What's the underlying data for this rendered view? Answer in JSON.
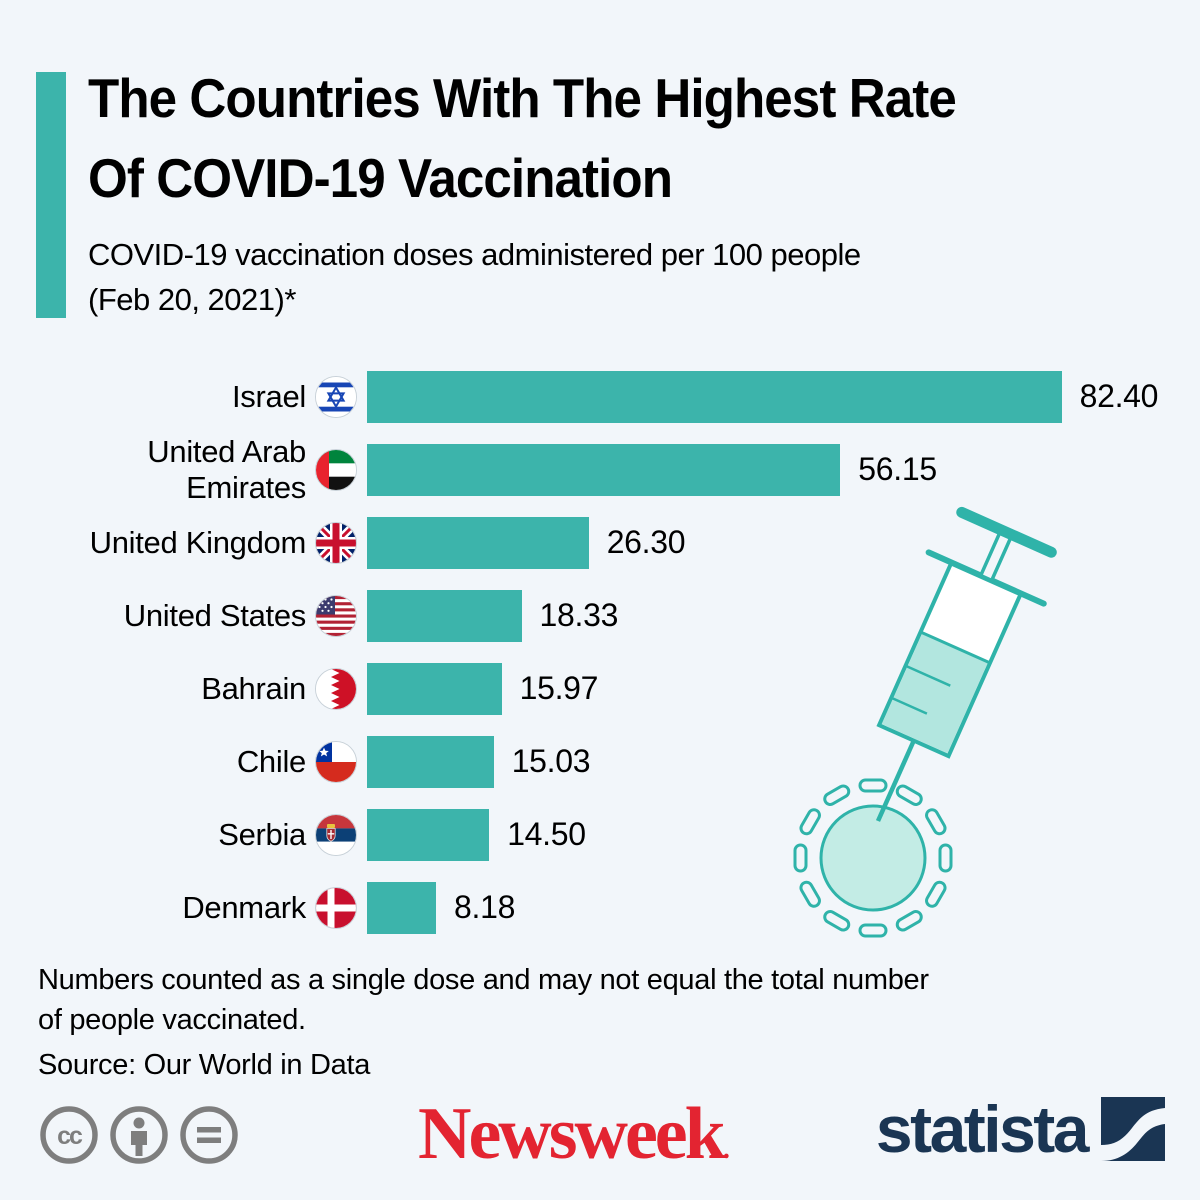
{
  "page": {
    "background_color": "#f2f6fa",
    "accent_color": "#3cb4ab"
  },
  "header": {
    "title_line1": "The Countries With The Highest Rate",
    "title_line2": "Of COVID-19 Vaccination",
    "subtitle_line1": "COVID-19 vaccination doses administered per 100 people",
    "subtitle_line2": "(Feb 20, 2021)*"
  },
  "chart_data": {
    "type": "bar",
    "orientation": "horizontal",
    "title": "The Countries With The Highest Rate Of COVID-19 Vaccination",
    "subtitle": "COVID-19 vaccination doses administered per 100 people (Feb 20, 2021)*",
    "categories": [
      "Israel",
      "United Arab Emirates",
      "United Kingdom",
      "United States",
      "Bahrain",
      "Chile",
      "Serbia",
      "Denmark"
    ],
    "values": [
      82.4,
      56.15,
      26.3,
      18.33,
      15.97,
      15.03,
      14.5,
      8.18
    ],
    "value_labels": [
      "82.40",
      "56.15",
      "26.30",
      "18.33",
      "15.97",
      "15.03",
      "14.50",
      "8.18"
    ],
    "flags": [
      "israel",
      "uae",
      "uk",
      "usa",
      "bahrain",
      "chile",
      "serbia",
      "denmark"
    ],
    "bar_color": "#3cb4ab",
    "xlim": [
      0,
      95
    ],
    "grid": false,
    "legend": false
  },
  "footnote": {
    "line1": "Numbers counted as a single dose and may not equal the total number",
    "line2": "of people vaccinated.",
    "source": "Source: Our World in Data"
  },
  "footer": {
    "license_icons": [
      "creative-commons",
      "attribution",
      "no-derivatives"
    ],
    "newsweek_logo_text": "Newsweek",
    "newsweek_color": "#e32431",
    "statista_logo_text": "statista",
    "statista_color": "#1a3553"
  }
}
